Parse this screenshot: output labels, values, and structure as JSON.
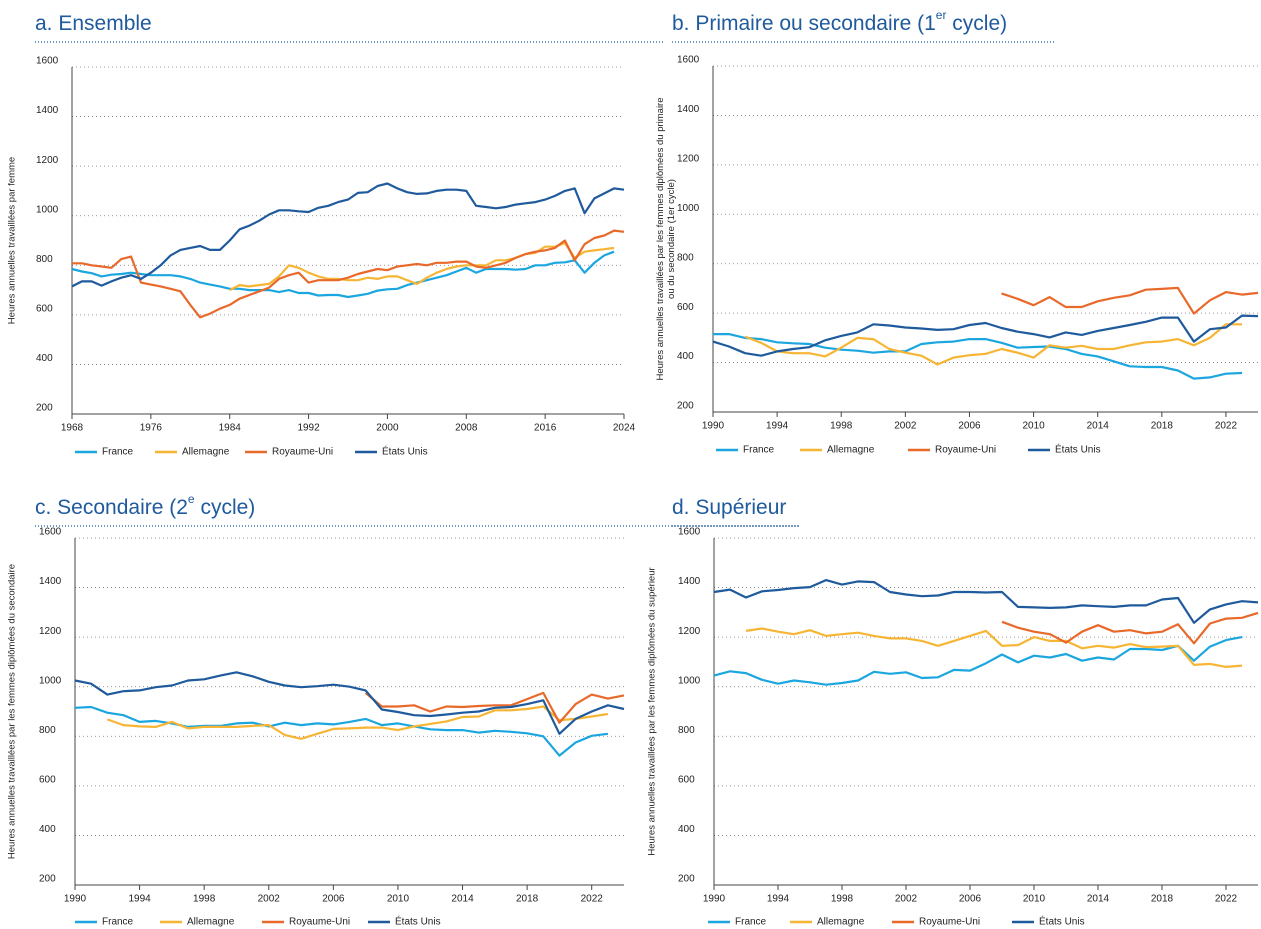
{
  "chart_data": [
    {
      "type": "line",
      "title": "a. Ensemble",
      "y_label": [
        "Heures annuelles travaillées par femme"
      ],
      "x": [
        1968,
        1969,
        1970,
        1971,
        1972,
        1973,
        1974,
        1975,
        1976,
        1977,
        1978,
        1979,
        1980,
        1981,
        1982,
        1983,
        1984,
        1985,
        1986,
        1987,
        1988,
        1989,
        1990,
        1991,
        1992,
        1993,
        1994,
        1995,
        1996,
        1997,
        1998,
        1999,
        2000,
        2001,
        2002,
        2003,
        2004,
        2005,
        2006,
        2007,
        2008,
        2009,
        2010,
        2011,
        2012,
        2013,
        2014,
        2015,
        2016,
        2017,
        2018,
        2019,
        2020,
        2021,
        2022,
        2023,
        2024
      ],
      "xlim": [
        1968,
        2024
      ],
      "xticks": [
        1968,
        1976,
        1984,
        1992,
        2000,
        2008,
        2016,
        2024
      ],
      "ylim": [
        200,
        1600
      ],
      "yticks": [
        200,
        400,
        600,
        800,
        1000,
        1200,
        1400,
        1600
      ],
      "grid": true,
      "legend": "bottom",
      "series": [
        {
          "name": "France",
          "color": "#1ba6e0",
          "values": [
            785,
            775,
            768,
            755,
            762,
            765,
            770,
            765,
            760,
            760,
            760,
            755,
            745,
            730,
            722,
            715,
            705,
            705,
            700,
            700,
            700,
            692,
            700,
            688,
            688,
            678,
            680,
            680,
            672,
            678,
            685,
            698,
            703,
            705,
            720,
            730,
            740,
            750,
            760,
            775,
            790,
            770,
            785,
            785,
            785,
            782,
            785,
            800,
            800,
            810,
            812,
            820,
            770,
            810,
            840,
            855,
            null
          ]
        },
        {
          "name": "Allemagne",
          "color": "#f6b534",
          "values": [
            null,
            null,
            null,
            null,
            null,
            null,
            null,
            null,
            null,
            null,
            null,
            null,
            null,
            null,
            null,
            null,
            700,
            720,
            715,
            720,
            725,
            755,
            800,
            790,
            770,
            755,
            745,
            745,
            740,
            740,
            750,
            745,
            755,
            755,
            740,
            725,
            750,
            770,
            785,
            795,
            800,
            800,
            800,
            820,
            820,
            830,
            845,
            850,
            875,
            875,
            890,
            830,
            855,
            860,
            865,
            870,
            null
          ]
        },
        {
          "name": "Royaume-Uni",
          "color": "#e8692a",
          "values": [
            808,
            808,
            800,
            795,
            790,
            825,
            835,
            730,
            722,
            715,
            705,
            695,
            640,
            590,
            605,
            625,
            640,
            665,
            680,
            695,
            710,
            745,
            760,
            770,
            730,
            740,
            740,
            740,
            750,
            765,
            775,
            785,
            780,
            795,
            800,
            805,
            800,
            810,
            810,
            815,
            815,
            795,
            790,
            800,
            810,
            830,
            845,
            855,
            860,
            870,
            900,
            820,
            885,
            910,
            920,
            940,
            935
          ]
        },
        {
          "name": "États Unis",
          "color": "#1f5a9c",
          "values": [
            715,
            735,
            735,
            718,
            735,
            750,
            760,
            745,
            770,
            800,
            840,
            862,
            870,
            878,
            862,
            862,
            900,
            945,
            960,
            980,
            1005,
            1022,
            1022,
            1018,
            1015,
            1032,
            1040,
            1055,
            1065,
            1092,
            1095,
            1120,
            1130,
            1110,
            1095,
            1088,
            1090,
            1100,
            1105,
            1105,
            1100,
            1040,
            1035,
            1030,
            1035,
            1045,
            1050,
            1055,
            1065,
            1080,
            1100,
            1110,
            1010,
            1070,
            1090,
            1110,
            1105
          ]
        }
      ]
    },
    {
      "type": "line",
      "title": "b. Primaire ou secondaire (1",
      "title_sup": "er",
      "title_end": " cycle)",
      "y_label": [
        "Heures annuelles travaillées par les femmes diplômées du primaire",
        "ou du secondaire (1er cycle)"
      ],
      "x": [
        1990,
        1991,
        1992,
        1993,
        1994,
        1995,
        1996,
        1997,
        1998,
        1999,
        2000,
        2001,
        2002,
        2003,
        2004,
        2005,
        2006,
        2007,
        2008,
        2009,
        2010,
        2011,
        2012,
        2013,
        2014,
        2015,
        2016,
        2017,
        2018,
        2019,
        2020,
        2021,
        2022,
        2023,
        2024
      ],
      "xlim": [
        1990,
        2024
      ],
      "xticks": [
        1990,
        1994,
        1998,
        2002,
        2006,
        2010,
        2014,
        2018,
        2022
      ],
      "ylim": [
        200,
        1600
      ],
      "yticks": [
        200,
        400,
        600,
        800,
        1000,
        1200,
        1400,
        1600
      ],
      "grid": true,
      "legend": "bottom",
      "series": [
        {
          "name": "France",
          "color": "#1ba6e0",
          "values": [
            515,
            515,
            500,
            495,
            482,
            478,
            475,
            460,
            452,
            448,
            440,
            445,
            445,
            475,
            482,
            485,
            495,
            495,
            480,
            460,
            463,
            465,
            455,
            435,
            425,
            405,
            385,
            382,
            382,
            368,
            335,
            340,
            355,
            358,
            null
          ]
        },
        {
          "name": "Allemagne",
          "color": "#f6b534",
          "values": [
            null,
            null,
            505,
            480,
            445,
            438,
            438,
            425,
            460,
            500,
            495,
            455,
            440,
            428,
            392,
            420,
            430,
            435,
            455,
            440,
            420,
            470,
            460,
            468,
            455,
            455,
            470,
            482,
            485,
            495,
            470,
            500,
            555,
            555,
            null
          ]
        },
        {
          "name": "Royaume-Uni",
          "color": "#e8692a",
          "values": [
            null,
            null,
            null,
            null,
            null,
            null,
            null,
            null,
            null,
            null,
            null,
            null,
            null,
            null,
            null,
            null,
            null,
            null,
            680,
            658,
            632,
            665,
            625,
            625,
            648,
            662,
            672,
            695,
            698,
            702,
            598,
            652,
            685,
            675,
            682
          ]
        },
        {
          "name": "États Unis",
          "color": "#1f5a9c",
          "values": [
            485,
            465,
            438,
            428,
            445,
            455,
            462,
            490,
            508,
            522,
            555,
            550,
            542,
            538,
            532,
            535,
            552,
            560,
            540,
            525,
            515,
            502,
            522,
            512,
            528,
            540,
            552,
            565,
            582,
            582,
            485,
            535,
            542,
            590,
            588
          ]
        }
      ]
    },
    {
      "type": "line",
      "title": "c. Secondaire (2",
      "title_sup": "e",
      "title_end": " cycle)",
      "y_label": [
        "Heures annuelles travaillées par les femmes diplômées du secondaire"
      ],
      "x": [
        1990,
        1991,
        1992,
        1993,
        1994,
        1995,
        1996,
        1997,
        1998,
        1999,
        2000,
        2001,
        2002,
        2003,
        2004,
        2005,
        2006,
        2007,
        2008,
        2009,
        2010,
        2011,
        2012,
        2013,
        2014,
        2015,
        2016,
        2017,
        2018,
        2019,
        2020,
        2021,
        2022,
        2023,
        2024
      ],
      "xlim": [
        1990,
        2024
      ],
      "xticks": [
        1990,
        1994,
        1998,
        2002,
        2006,
        2010,
        2014,
        2018,
        2022
      ],
      "ylim": [
        200,
        1600
      ],
      "yticks": [
        200,
        400,
        600,
        800,
        1000,
        1200,
        1400,
        1600
      ],
      "grid": true,
      "legend": "bottom",
      "series": [
        {
          "name": "France",
          "color": "#1ba6e0",
          "values": [
            915,
            918,
            895,
            885,
            858,
            862,
            852,
            838,
            842,
            842,
            852,
            855,
            840,
            855,
            845,
            852,
            848,
            858,
            870,
            845,
            852,
            840,
            828,
            825,
            825,
            815,
            822,
            818,
            812,
            800,
            722,
            775,
            802,
            810,
            null
          ]
        },
        {
          "name": "Allemagne",
          "color": "#f6b534",
          "values": [
            null,
            null,
            868,
            845,
            840,
            838,
            858,
            832,
            838,
            838,
            838,
            842,
            845,
            805,
            790,
            810,
            830,
            832,
            835,
            835,
            825,
            840,
            850,
            860,
            878,
            880,
            905,
            905,
            910,
            920,
            865,
            870,
            880,
            890,
            null
          ]
        },
        {
          "name": "Royaume-Uni",
          "color": "#e8692a",
          "values": [
            null,
            null,
            null,
            null,
            null,
            null,
            null,
            null,
            null,
            null,
            null,
            null,
            null,
            null,
            null,
            null,
            null,
            null,
            975,
            920,
            920,
            925,
            900,
            920,
            918,
            922,
            925,
            925,
            950,
            975,
            855,
            930,
            968,
            952,
            965
          ]
        },
        {
          "name": "États Unis",
          "color": "#1f5a9c",
          "values": [
            1025,
            1012,
            968,
            982,
            985,
            998,
            1005,
            1025,
            1030,
            1045,
            1058,
            1042,
            1020,
            1005,
            998,
            1002,
            1008,
            1000,
            985,
            908,
            898,
            885,
            882,
            888,
            895,
            900,
            915,
            918,
            930,
            945,
            810,
            870,
            900,
            925,
            910
          ]
        }
      ]
    },
    {
      "type": "line",
      "title": "d. Supérieur",
      "y_label": [
        "Heures annuelles travaillées par les femmes diplômées du supérieur"
      ],
      "x": [
        1990,
        1991,
        1992,
        1993,
        1994,
        1995,
        1996,
        1997,
        1998,
        1999,
        2000,
        2001,
        2002,
        2003,
        2004,
        2005,
        2006,
        2007,
        2008,
        2009,
        2010,
        2011,
        2012,
        2013,
        2014,
        2015,
        2016,
        2017,
        2018,
        2019,
        2020,
        2021,
        2022,
        2023,
        2024
      ],
      "xlim": [
        1990,
        2024
      ],
      "xticks": [
        1990,
        1994,
        1998,
        2002,
        2006,
        2010,
        2014,
        2018,
        2022
      ],
      "ylim": [
        200,
        1600
      ],
      "yticks": [
        200,
        400,
        600,
        800,
        1000,
        1200,
        1400,
        1600
      ],
      "grid": true,
      "legend": "bottom",
      "series": [
        {
          "name": "France",
          "color": "#1ba6e0",
          "values": [
            1045,
            1062,
            1055,
            1028,
            1012,
            1025,
            1018,
            1008,
            1015,
            1025,
            1060,
            1052,
            1058,
            1035,
            1038,
            1068,
            1065,
            1095,
            1130,
            1098,
            1125,
            1118,
            1132,
            1105,
            1118,
            1110,
            1152,
            1152,
            1148,
            1165,
            1105,
            1162,
            1188,
            1200,
            null
          ]
        },
        {
          "name": "Allemagne",
          "color": "#f6b534",
          "values": [
            null,
            null,
            1225,
            1235,
            1222,
            1212,
            1228,
            1205,
            1212,
            1218,
            1205,
            1195,
            1195,
            1185,
            1165,
            1185,
            1205,
            1225,
            1165,
            1168,
            1200,
            1185,
            1185,
            1155,
            1165,
            1158,
            1172,
            1160,
            1162,
            1165,
            1088,
            1092,
            1080,
            1085,
            null
          ]
        },
        {
          "name": "Royaume-Uni",
          "color": "#e8692a",
          "values": [
            null,
            null,
            null,
            null,
            null,
            null,
            null,
            null,
            null,
            null,
            null,
            null,
            null,
            null,
            null,
            null,
            null,
            null,
            1262,
            1238,
            1222,
            1212,
            1178,
            1222,
            1248,
            1222,
            1228,
            1215,
            1222,
            1252,
            1175,
            1255,
            1275,
            1278,
            1298
          ]
        },
        {
          "name": "États Unis",
          "color": "#1f5a9c",
          "values": [
            1382,
            1392,
            1360,
            1385,
            1390,
            1398,
            1402,
            1430,
            1412,
            1425,
            1422,
            1382,
            1372,
            1365,
            1368,
            1382,
            1382,
            1380,
            1382,
            1322,
            1320,
            1318,
            1320,
            1328,
            1325,
            1322,
            1328,
            1328,
            1352,
            1358,
            1258,
            1312,
            1332,
            1345,
            1340
          ]
        }
      ]
    }
  ]
}
